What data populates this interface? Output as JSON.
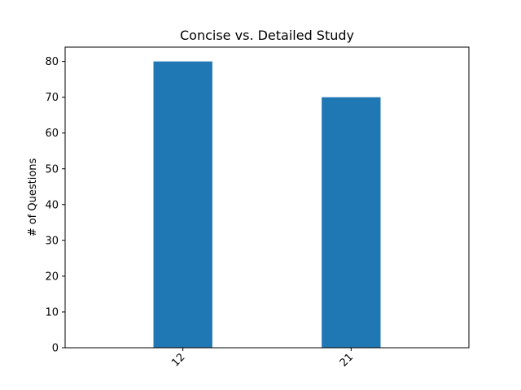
{
  "chart_data": {
    "type": "bar",
    "title": "Concise vs. Detailed Study",
    "xlabel": "",
    "ylabel": "# of Questions",
    "categories": [
      "12",
      "21"
    ],
    "values": [
      80,
      70
    ],
    "ylim": [
      0,
      84
    ],
    "yticks": [
      0,
      10,
      20,
      30,
      40,
      50,
      60,
      70,
      80
    ],
    "bar_color": "#1f77b4",
    "grid": false,
    "legend": "none"
  }
}
